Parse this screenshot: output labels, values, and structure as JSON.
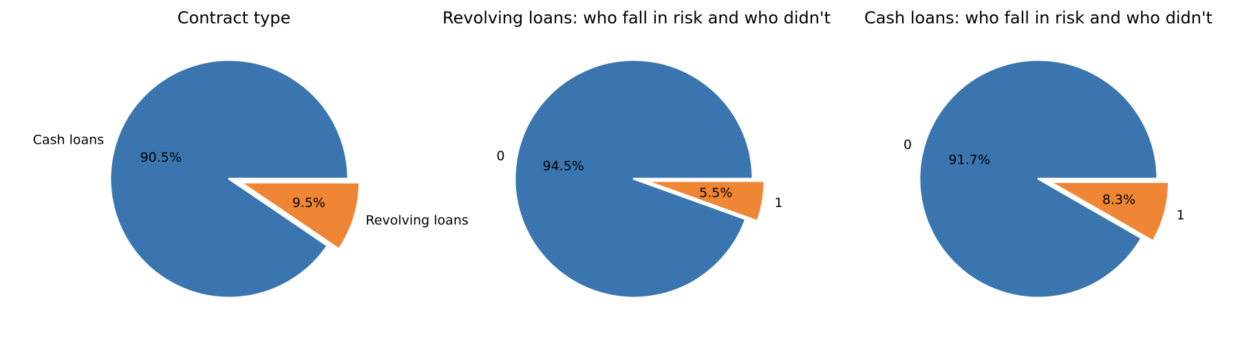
{
  "colors": {
    "background": "#ffffff",
    "slice_colors": [
      "#3b75af",
      "#ef8636"
    ],
    "slice_edge": "#ffffff",
    "text": "#000000"
  },
  "chart_data": [
    {
      "type": "pie",
      "title": "Contract type",
      "labels": [
        "Cash loans",
        "Revolving loans"
      ],
      "values": [
        90.5,
        9.5
      ],
      "autopct": [
        "90.5%",
        "9.5%"
      ],
      "explode": [
        0,
        0.1
      ],
      "start_angle": 0,
      "direction": "counterclockwise"
    },
    {
      "type": "pie",
      "title": "Revolving loans: who fall in risk and who didn't",
      "labels": [
        "0",
        "1"
      ],
      "values": [
        94.5,
        5.5
      ],
      "autopct": [
        "94.5%",
        "5.5%"
      ],
      "explode": [
        0,
        0.1
      ],
      "start_angle": 0,
      "direction": "counterclockwise"
    },
    {
      "type": "pie",
      "title": "Cash loans: who fall in risk and who didn't",
      "labels": [
        "0",
        "1"
      ],
      "values": [
        91.7,
        8.3
      ],
      "autopct": [
        "91.7%",
        "8.3%"
      ],
      "explode": [
        0,
        0.1
      ],
      "start_angle": 0,
      "direction": "counterclockwise"
    }
  ]
}
